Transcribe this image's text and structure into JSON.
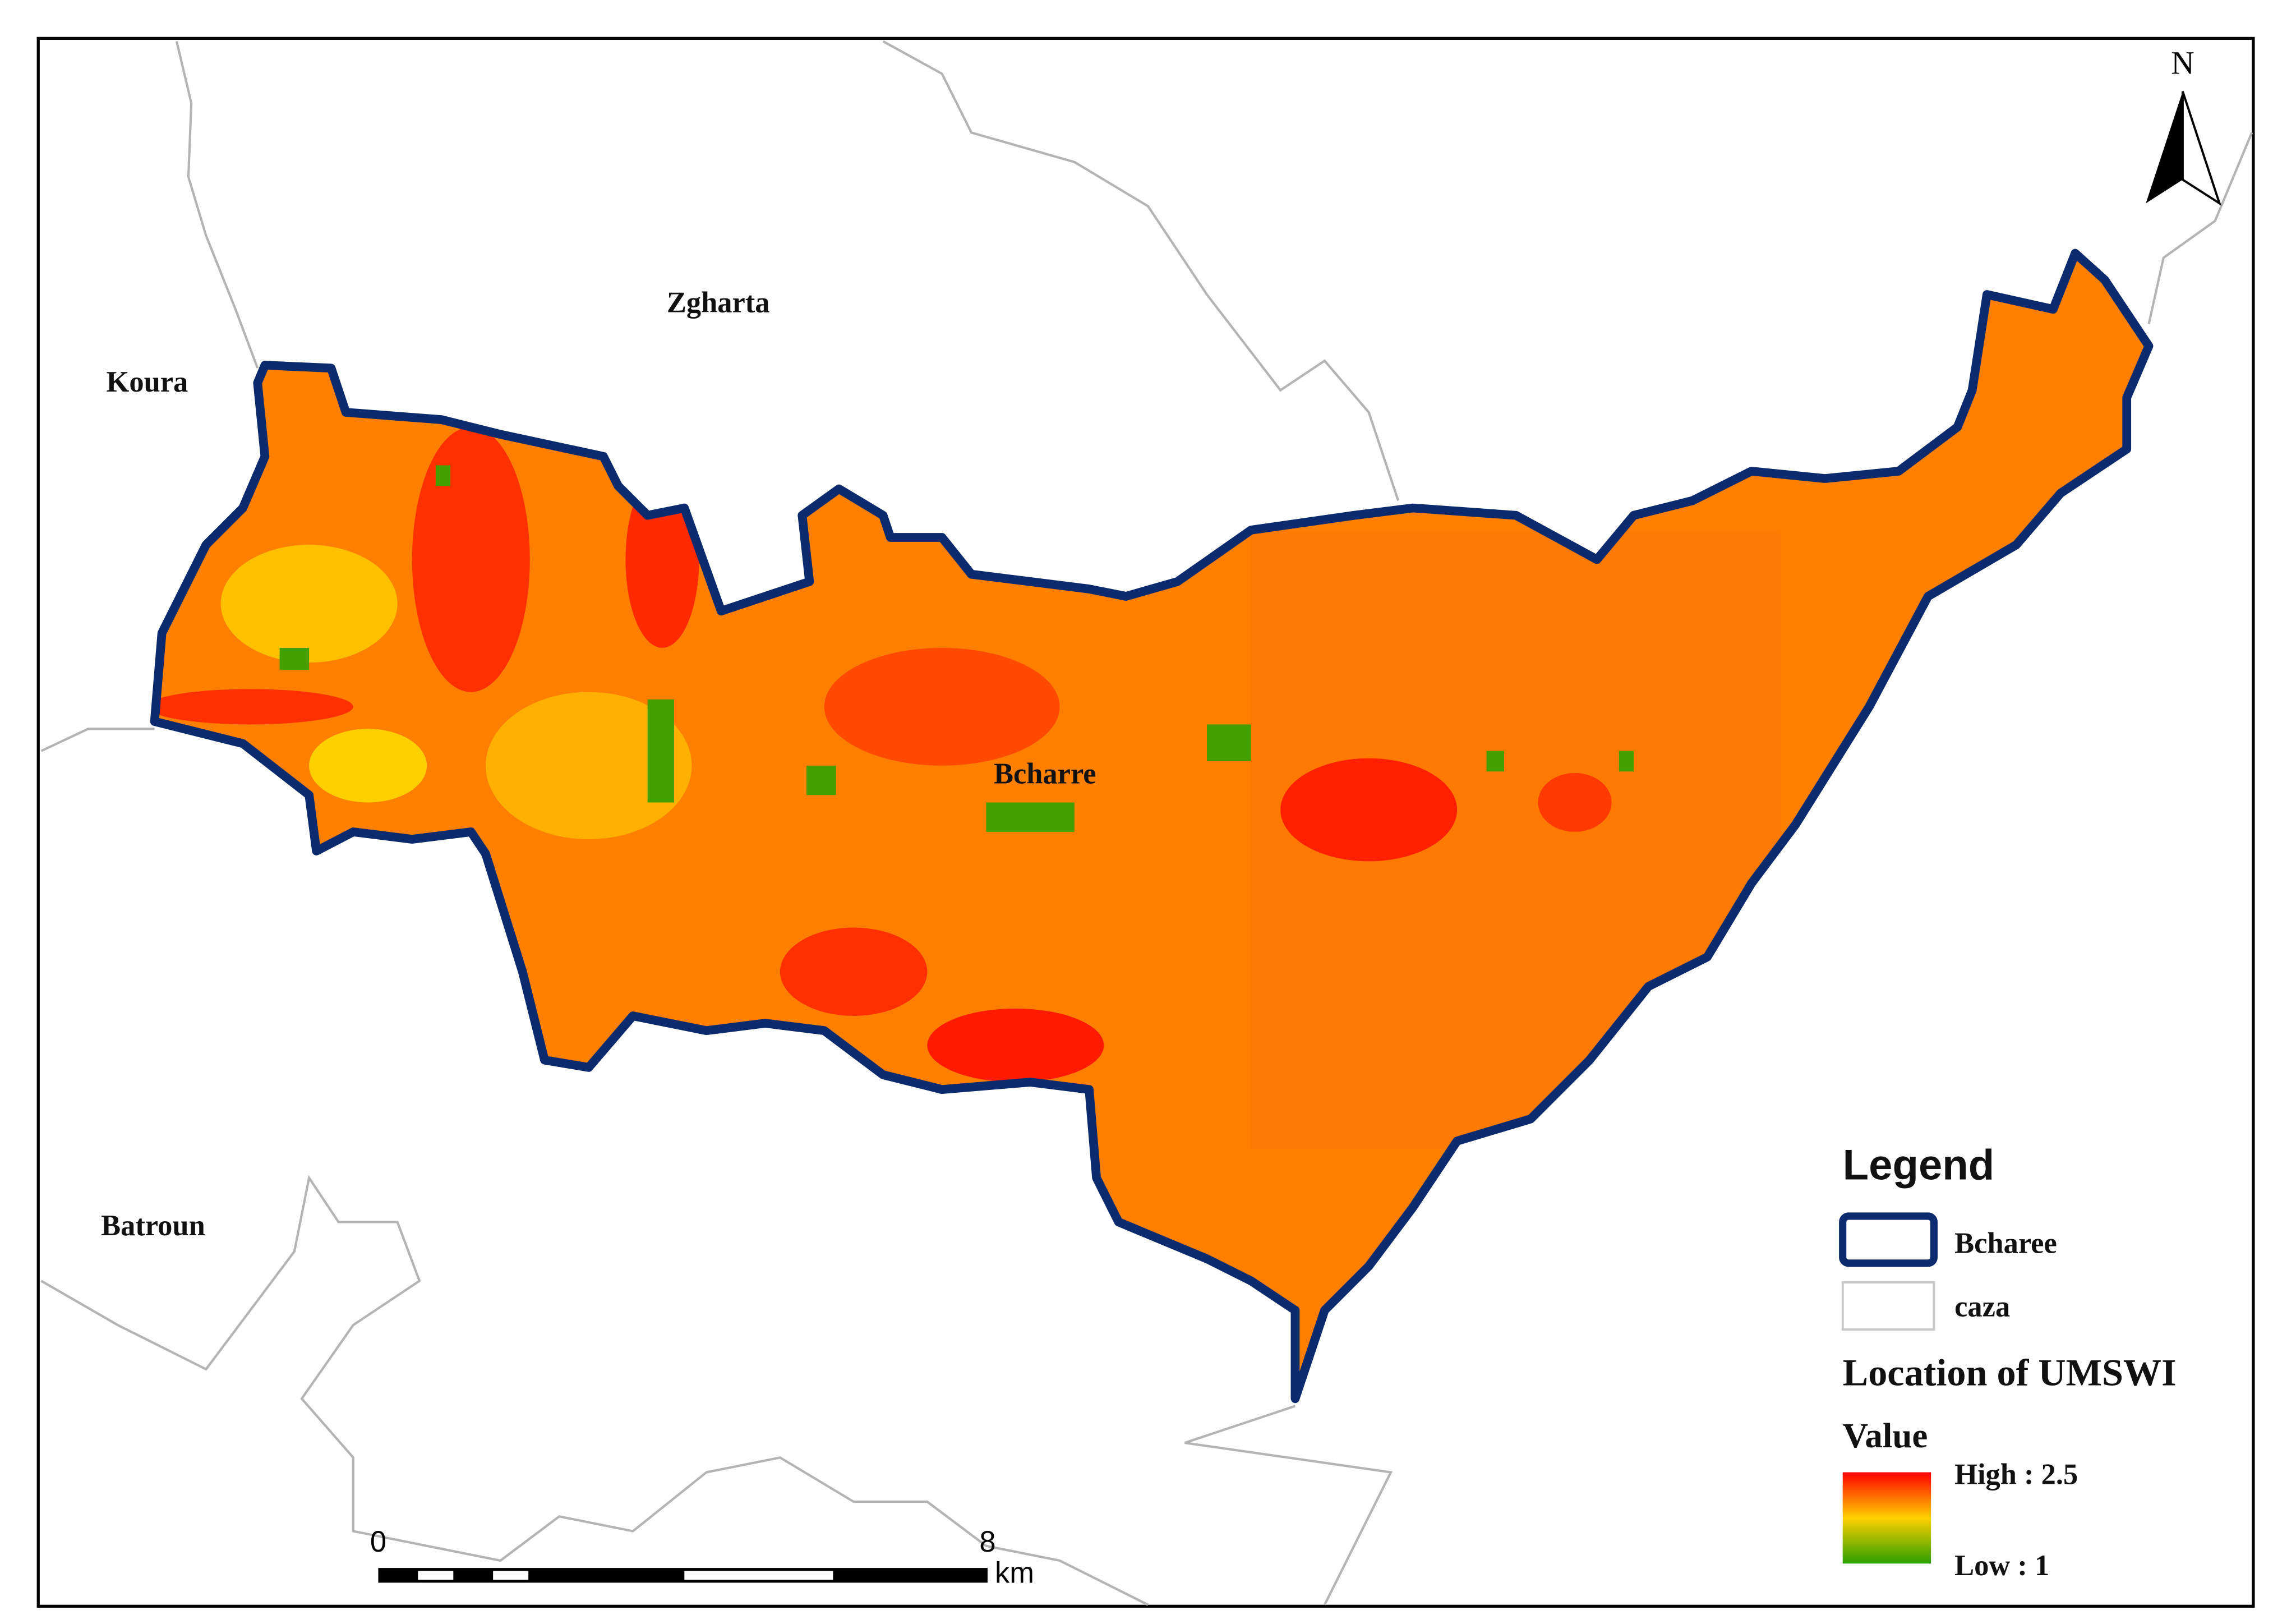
{
  "map": {
    "places": [
      "Zgharta",
      "Koura",
      "Batroun",
      "Bcharre"
    ],
    "north": "N",
    "legend": {
      "title": "Legend",
      "items": [
        "Bcharee",
        "caza"
      ],
      "layer": "Location of UMSWI",
      "field": "Value",
      "high": "High : 2.5",
      "low": "Low : 1"
    },
    "scale": {
      "start": "0",
      "end": "8",
      "unit": "km"
    }
  }
}
